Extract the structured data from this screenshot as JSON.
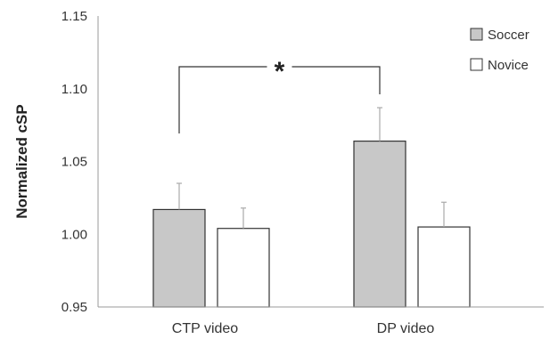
{
  "chart_data": {
    "type": "bar",
    "ylabel": "Normalized cSP",
    "xlabel": "",
    "title": "",
    "ylim": [
      0.95,
      1.15
    ],
    "yticks": [
      "0.95",
      "1.00",
      "1.05",
      "1.10",
      "1.15"
    ],
    "ytick_values": [
      0.95,
      1.0,
      1.05,
      1.1,
      1.15
    ],
    "categories": [
      "CTP video",
      "DP video"
    ],
    "series": [
      {
        "name": "Soccer",
        "values": [
          1.017,
          1.064
        ],
        "errors": [
          0.018,
          0.023
        ],
        "color": "#c8c8c8"
      },
      {
        "name": "Novice",
        "values": [
          1.004,
          1.005
        ],
        "errors": [
          0.014,
          0.017
        ],
        "color": "#ffffff"
      }
    ],
    "legend_position": "top-right",
    "grid": false,
    "annotations": [
      {
        "text": "*",
        "type": "significance-bracket",
        "between": [
          "CTP video Soccer",
          "DP video Soccer"
        ]
      }
    ]
  }
}
